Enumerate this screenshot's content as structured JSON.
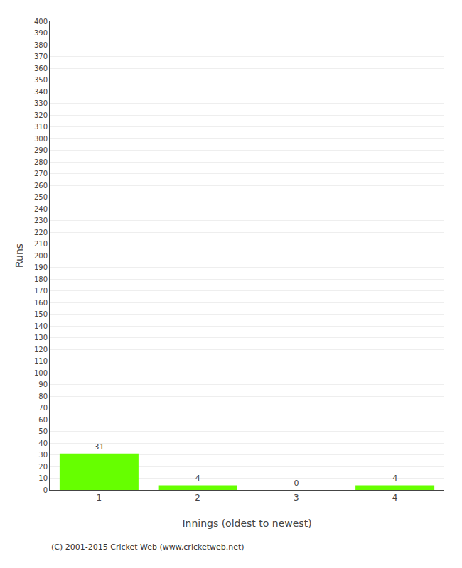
{
  "chart_data": {
    "type": "bar",
    "categories": [
      "1",
      "2",
      "3",
      "4"
    ],
    "values": [
      31,
      4,
      0,
      4
    ],
    "color": "#66ff00",
    "xlabel": "Innings (oldest to newest)",
    "ylabel": "Runs",
    "ylim": [
      0,
      400
    ],
    "yticks": [
      0,
      10,
      20,
      30,
      40,
      50,
      60,
      70,
      80,
      90,
      100,
      110,
      120,
      130,
      140,
      150,
      160,
      170,
      180,
      190,
      200,
      210,
      220,
      230,
      240,
      250,
      260,
      270,
      280,
      290,
      300,
      310,
      320,
      330,
      340,
      350,
      360,
      370,
      380,
      390,
      400
    ],
    "grid": true,
    "data_labels": true,
    "annotations": [
      "(C) 2001-2015 Cricket Web (www.cricketweb.net)"
    ]
  }
}
